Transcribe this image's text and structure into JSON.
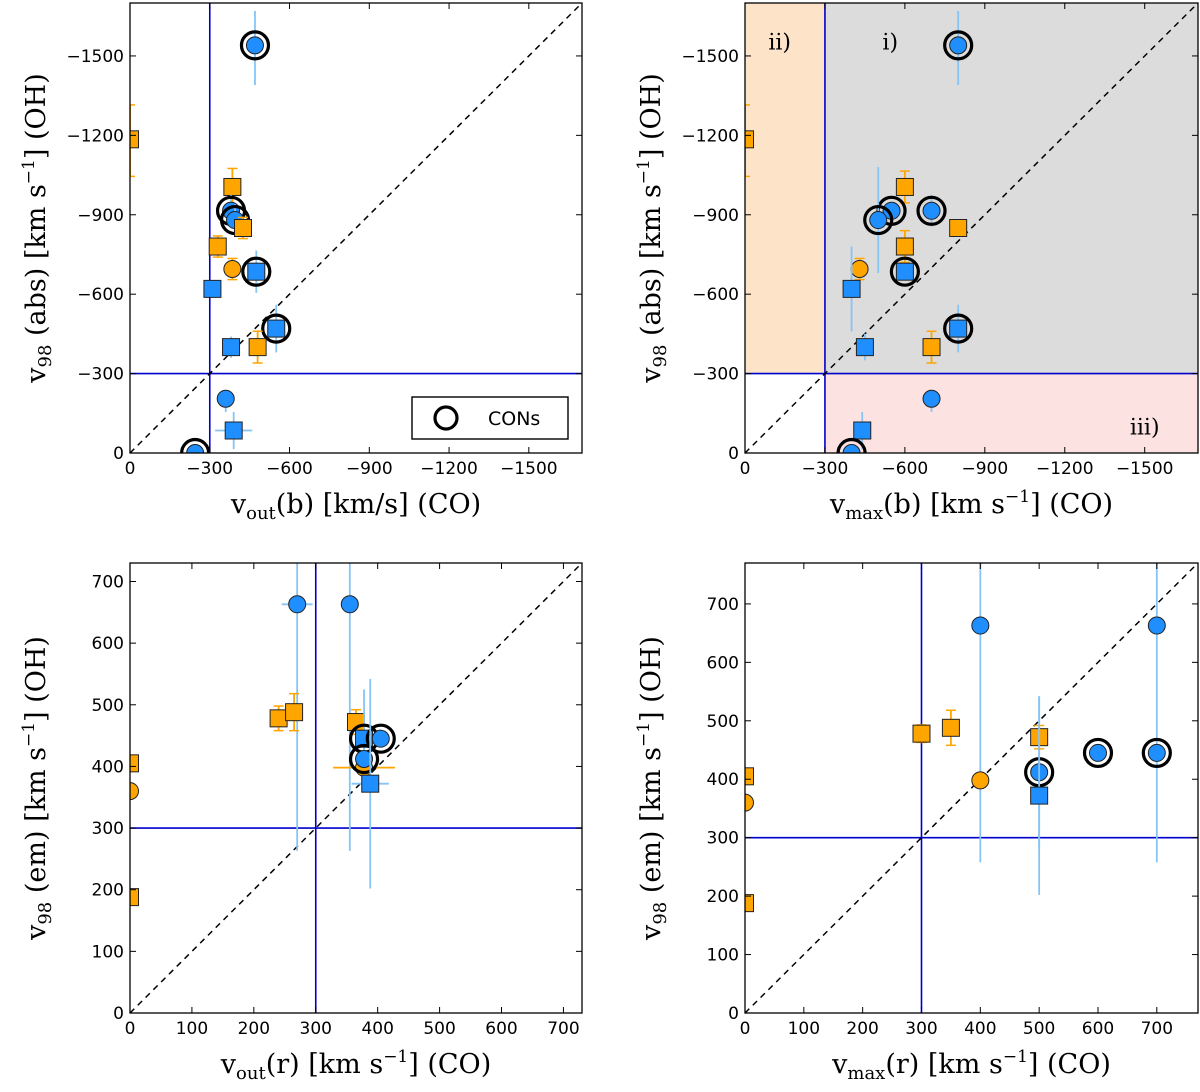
{
  "colors": {
    "blue": "#1f8fff",
    "orange": "#ffa500",
    "err_blue": "#87c4f6",
    "err_orange": "#ffa500",
    "line": "#0000cc",
    "frame": "#000000",
    "ring": "#000000"
  },
  "chart_data": [
    {
      "type": "scatter",
      "id": "top-left",
      "xlabel": {
        "main": "v",
        "sub": "out",
        "rest": "(b) [km/s] (CO)"
      },
      "ylabel": {
        "main": "v",
        "sub": "98",
        "rest": " (abs) [km s",
        "sup": "−1",
        "tail": "] (OH)"
      },
      "xlim": [
        0,
        -1700
      ],
      "ylim": [
        0,
        -1700
      ],
      "xticks": [
        0,
        -300,
        -600,
        -900,
        -1200,
        -1500
      ],
      "xtick_labels": [
        "0",
        "−300",
        "−600",
        "−900",
        "−1200",
        "−1500"
      ],
      "yticks": [
        0,
        -300,
        -600,
        -900,
        -1200,
        -1500
      ],
      "ytick_labels": [
        "0",
        "−300",
        "−600",
        "−900",
        "−1200",
        "−1500"
      ],
      "vline": -300,
      "hline": -300,
      "legend": {
        "label": "CONs",
        "position": "lower-right"
      },
      "points": [
        {
          "x": -470,
          "y": -1540,
          "shape": "circle",
          "color": "blue",
          "ring": true,
          "yerr": [
            150,
            130
          ]
        },
        {
          "x": 0,
          "y": -1185,
          "shape": "square",
          "color": "orange",
          "ring": false,
          "yerr": [
            140,
            130
          ]
        },
        {
          "x": -385,
          "y": -1005,
          "shape": "square",
          "color": "orange",
          "ring": false,
          "yerr": [
            70,
            70
          ]
        },
        {
          "x": -380,
          "y": -915,
          "shape": "circle",
          "color": "blue",
          "ring": true,
          "yerr": [
            60,
            60
          ]
        },
        {
          "x": -395,
          "y": -880,
          "shape": "circle",
          "color": "blue",
          "ring": true,
          "yerr": [
            60,
            60
          ]
        },
        {
          "x": -425,
          "y": -850,
          "shape": "square",
          "color": "orange",
          "ring": false,
          "yerr": [
            40,
            40
          ]
        },
        {
          "x": -330,
          "y": -780,
          "shape": "square",
          "color": "orange",
          "ring": false,
          "yerr": [
            40,
            40
          ]
        },
        {
          "x": -385,
          "y": -695,
          "shape": "circle",
          "color": "orange",
          "ring": false,
          "yerr": [
            40,
            40
          ]
        },
        {
          "x": -475,
          "y": -685,
          "shape": "square",
          "color": "blue",
          "ring": true,
          "yerr": [
            80,
            80
          ]
        },
        {
          "x": -310,
          "y": -620,
          "shape": "square",
          "color": "blue",
          "ring": false
        },
        {
          "x": -550,
          "y": -470,
          "shape": "square",
          "color": "blue",
          "ring": true,
          "yerr": [
            90,
            90
          ]
        },
        {
          "x": -380,
          "y": -400,
          "shape": "square",
          "color": "blue",
          "ring": false,
          "yerr": [
            40,
            40
          ]
        },
        {
          "x": -480,
          "y": -400,
          "shape": "square",
          "color": "orange",
          "ring": false,
          "yerr": [
            60,
            60
          ]
        },
        {
          "x": -360,
          "y": -205,
          "shape": "circle",
          "color": "blue",
          "ring": false,
          "yerr": [
            50,
            30
          ]
        },
        {
          "x": -390,
          "y": -85,
          "shape": "square",
          "color": "blue",
          "ring": false,
          "xerr": [
            70,
            70
          ],
          "yerr": [
            70,
            70
          ]
        },
        {
          "x": -245,
          "y": 0,
          "shape": "circle",
          "color": "blue",
          "ring": true,
          "yerr": [
            200,
            0
          ]
        }
      ]
    },
    {
      "type": "scatter",
      "id": "top-right",
      "xlabel": {
        "main": "v",
        "sub": "max",
        "rest": "(b) [km s",
        "sup": "−1",
        "tail": "] (CO)"
      },
      "ylabel": {
        "main": "v",
        "sub": "98",
        "rest": " (abs) [km s",
        "sup": "−1",
        "tail": "] (OH)"
      },
      "xlim": [
        0,
        -1700
      ],
      "ylim": [
        0,
        -1700
      ],
      "xticks": [
        0,
        -300,
        -600,
        -900,
        -1200,
        -1500
      ],
      "xtick_labels": [
        "0",
        "−300",
        "−600",
        "−900",
        "−1200",
        "−1500"
      ],
      "yticks": [
        0,
        -300,
        -600,
        -900,
        -1200,
        -1500
      ],
      "ytick_labels": [
        "0",
        "−300",
        "−600",
        "−900",
        "−1200",
        "−1500"
      ],
      "vline": -300,
      "hline": -300,
      "regions": [
        {
          "label": "i)",
          "color": "#dcdcdc",
          "x": [
            -300,
            -1700
          ],
          "y": [
            -300,
            -1700
          ],
          "label_at": [
            -545,
            -1555
          ]
        },
        {
          "label": "ii)",
          "color": "#fde4c8",
          "x": [
            0,
            -300
          ],
          "y": [
            -300,
            -1700
          ],
          "label_at": [
            -130,
            -1555
          ]
        },
        {
          "label": "iii)",
          "color": "#fde2e2",
          "x": [
            -300,
            -1700
          ],
          "y": [
            0,
            -300
          ],
          "label_at": [
            -1500,
            -100
          ]
        }
      ],
      "points": [
        {
          "x": -800,
          "y": -1540,
          "shape": "circle",
          "color": "blue",
          "ring": true,
          "yerr": [
            150,
            130
          ]
        },
        {
          "x": 0,
          "y": -1185,
          "shape": "square",
          "color": "orange",
          "ring": false,
          "yerr": [
            140,
            130
          ]
        },
        {
          "x": -600,
          "y": -1005,
          "shape": "square",
          "color": "orange",
          "ring": false,
          "yerr": [
            60,
            60
          ]
        },
        {
          "x": -550,
          "y": -915,
          "shape": "circle",
          "color": "blue",
          "ring": true
        },
        {
          "x": -700,
          "y": -915,
          "shape": "circle",
          "color": "blue",
          "ring": true,
          "yerr": [
            60,
            60
          ]
        },
        {
          "x": -500,
          "y": -880,
          "shape": "circle",
          "color": "blue",
          "ring": true,
          "yerr": [
            200,
            200
          ]
        },
        {
          "x": -800,
          "y": -850,
          "shape": "square",
          "color": "orange",
          "ring": false
        },
        {
          "x": -600,
          "y": -780,
          "shape": "square",
          "color": "orange",
          "ring": false,
          "yerr": [
            60,
            60
          ]
        },
        {
          "x": -430,
          "y": -695,
          "shape": "circle",
          "color": "orange",
          "ring": false,
          "yerr": [
            40,
            40
          ]
        },
        {
          "x": -600,
          "y": -685,
          "shape": "square",
          "color": "blue",
          "ring": true
        },
        {
          "x": -400,
          "y": -620,
          "shape": "square",
          "color": "blue",
          "ring": false,
          "yerr": [
            160,
            160
          ]
        },
        {
          "x": -800,
          "y": -470,
          "shape": "square",
          "color": "blue",
          "ring": true,
          "yerr": [
            90,
            90
          ]
        },
        {
          "x": -450,
          "y": -400,
          "shape": "square",
          "color": "blue",
          "ring": false,
          "yerr": [
            50,
            50
          ]
        },
        {
          "x": -700,
          "y": -400,
          "shape": "square",
          "color": "orange",
          "ring": false,
          "yerr": [
            60,
            60
          ]
        },
        {
          "x": -700,
          "y": -205,
          "shape": "circle",
          "color": "blue",
          "ring": false,
          "yerr": [
            50,
            30
          ]
        },
        {
          "x": -440,
          "y": -85,
          "shape": "square",
          "color": "blue",
          "ring": false,
          "yerr": [
            70,
            70
          ]
        },
        {
          "x": -400,
          "y": 0,
          "shape": "circle",
          "color": "blue",
          "ring": true,
          "yerr": [
            200,
            0
          ]
        }
      ]
    },
    {
      "type": "scatter",
      "id": "bottom-left",
      "xlabel": {
        "main": "v",
        "sub": "out",
        "rest": "(r) [km s",
        "sup": "−1",
        "tail": "] (CO)"
      },
      "ylabel": {
        "main": "v",
        "sub": "98",
        "rest": " (em) [km s",
        "sup": "−1",
        "tail": "] (OH)"
      },
      "xlim": [
        0,
        730
      ],
      "ylim": [
        0,
        730
      ],
      "xticks": [
        0,
        100,
        200,
        300,
        400,
        500,
        600,
        700
      ],
      "xtick_labels": [
        "0",
        "100",
        "200",
        "300",
        "400",
        "500",
        "600",
        "700"
      ],
      "yticks": [
        0,
        100,
        200,
        300,
        400,
        500,
        600,
        700
      ],
      "ytick_labels": [
        "0",
        "100",
        "200",
        "300",
        "400",
        "500",
        "600",
        "700"
      ],
      "vline": 300,
      "hline": 300,
      "points": [
        {
          "x": 270,
          "y": 663,
          "shape": "circle",
          "color": "blue",
          "ring": false,
          "xerr": [
            25,
            25
          ],
          "yerr": [
            400,
            80
          ]
        },
        {
          "x": 355,
          "y": 663,
          "shape": "circle",
          "color": "blue",
          "ring": false,
          "yerr": [
            400,
            80
          ]
        },
        {
          "x": 0,
          "y": 405,
          "shape": "square",
          "color": "orange",
          "ring": false
        },
        {
          "x": 0,
          "y": 360,
          "shape": "circle",
          "color": "orange",
          "ring": false
        },
        {
          "x": 0,
          "y": 188,
          "shape": "square",
          "color": "orange",
          "ring": false
        },
        {
          "x": 240,
          "y": 478,
          "shape": "square",
          "color": "orange",
          "ring": false,
          "xerr": [
            10,
            10
          ],
          "yerr": [
            20,
            20
          ]
        },
        {
          "x": 265,
          "y": 488,
          "shape": "square",
          "color": "orange",
          "ring": false,
          "xerr": [
            10,
            10
          ],
          "yerr": [
            30,
            30
          ]
        },
        {
          "x": 365,
          "y": 472,
          "shape": "square",
          "color": "orange",
          "ring": false,
          "yerr": [
            20,
            20
          ]
        },
        {
          "x": 378,
          "y": 445,
          "shape": "square",
          "color": "blue",
          "ring": true,
          "yerr": [
            80,
            80
          ]
        },
        {
          "x": 405,
          "y": 445,
          "shape": "circle",
          "color": "blue",
          "ring": true
        },
        {
          "x": 378,
          "y": 398,
          "shape": "circle",
          "color": "orange",
          "ring": false,
          "xerr": [
            50,
            50
          ]
        },
        {
          "x": 378,
          "y": 412,
          "shape": "circle",
          "color": "blue",
          "ring": true
        },
        {
          "x": 388,
          "y": 372,
          "shape": "square",
          "color": "blue",
          "ring": false,
          "xerr": [
            30,
            30
          ],
          "yerr": [
            170,
            170
          ]
        }
      ]
    },
    {
      "type": "scatter",
      "id": "bottom-right",
      "xlabel": {
        "main": "v",
        "sub": "max",
        "rest": "(r) [km s",
        "sup": "−1",
        "tail": "] (CO)"
      },
      "ylabel": {
        "main": "v",
        "sub": "98",
        "rest": " (em) [km s",
        "sup": "−1",
        "tail": "] (OH)"
      },
      "xlim": [
        0,
        770
      ],
      "ylim": [
        0,
        770
      ],
      "xticks": [
        0,
        100,
        200,
        300,
        400,
        500,
        600,
        700
      ],
      "xtick_labels": [
        "0",
        "100",
        "200",
        "300",
        "400",
        "500",
        "600",
        "700"
      ],
      "yticks": [
        0,
        100,
        200,
        300,
        400,
        500,
        600,
        700
      ],
      "ytick_labels": [
        "0",
        "100",
        "200",
        "300",
        "400",
        "500",
        "600",
        "700"
      ],
      "vline": 300,
      "hline": 300,
      "points": [
        {
          "x": 400,
          "y": 663,
          "shape": "circle",
          "color": "blue",
          "ring": false,
          "yerr": [
            405,
            107
          ]
        },
        {
          "x": 700,
          "y": 663,
          "shape": "circle",
          "color": "blue",
          "ring": false,
          "yerr": [
            405,
            107
          ]
        },
        {
          "x": 0,
          "y": 405,
          "shape": "square",
          "color": "orange",
          "ring": false
        },
        {
          "x": 0,
          "y": 360,
          "shape": "circle",
          "color": "orange",
          "ring": false
        },
        {
          "x": 0,
          "y": 188,
          "shape": "square",
          "color": "orange",
          "ring": false
        },
        {
          "x": 300,
          "y": 478,
          "shape": "square",
          "color": "orange",
          "ring": false,
          "yerr": [
            15,
            15
          ]
        },
        {
          "x": 350,
          "y": 488,
          "shape": "square",
          "color": "orange",
          "ring": false,
          "yerr": [
            30,
            30
          ]
        },
        {
          "x": 500,
          "y": 472,
          "shape": "square",
          "color": "orange",
          "ring": false,
          "yerr": [
            20,
            20
          ]
        },
        {
          "x": 400,
          "y": 398,
          "shape": "circle",
          "color": "orange",
          "ring": false
        },
        {
          "x": 500,
          "y": 412,
          "shape": "circle",
          "color": "blue",
          "ring": true,
          "yerr": [
            130,
            130
          ]
        },
        {
          "x": 600,
          "y": 445,
          "shape": "circle",
          "color": "blue",
          "ring": true
        },
        {
          "x": 700,
          "y": 445,
          "shape": "circle",
          "color": "blue",
          "ring": true
        },
        {
          "x": 500,
          "y": 372,
          "shape": "square",
          "color": "blue",
          "ring": false,
          "yerr": [
            170,
            170
          ]
        }
      ]
    }
  ]
}
